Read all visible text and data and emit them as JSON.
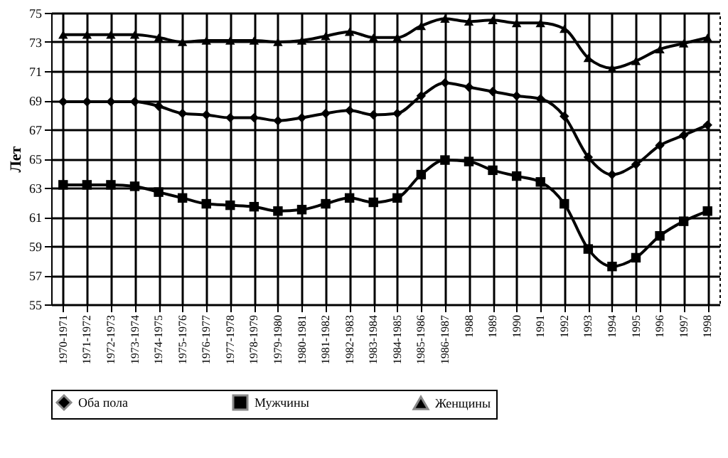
{
  "chart_data": {
    "type": "line",
    "ylabel": "Лет",
    "categories": [
      "1970-1971",
      "1971-1972",
      "1972-1973",
      "1973-1974",
      "1974-1975",
      "1975-1976",
      "1976-1977",
      "1977-1978",
      "1978-1979",
      "1979-1980",
      "1980-1981",
      "1981-1982",
      "1982-1983",
      "1983-1984",
      "1984-1985",
      "1985-1986",
      "1986-1987",
      "1988",
      "1989",
      "1990",
      "1991",
      "1992",
      "1993",
      "1994",
      "1995",
      "1996",
      "1997",
      "1998"
    ],
    "series": [
      {
        "name": "Оба пола",
        "color": "#000000",
        "marker": "diamond",
        "values": [
          68.9,
          68.9,
          68.9,
          68.9,
          68.6,
          68.1,
          68.0,
          67.8,
          67.8,
          67.6,
          67.8,
          68.1,
          68.3,
          68.0,
          68.1,
          69.3,
          70.2,
          69.9,
          69.6,
          69.3,
          69.1,
          67.9,
          65.1,
          63.9,
          64.6,
          65.9,
          66.6,
          67.3
        ]
      },
      {
        "name": "Мужчины",
        "color": "#000000",
        "marker": "square",
        "values": [
          63.2,
          63.2,
          63.2,
          63.1,
          62.7,
          62.3,
          61.9,
          61.8,
          61.7,
          61.4,
          61.5,
          61.9,
          62.3,
          62.0,
          62.3,
          63.9,
          64.9,
          64.8,
          64.2,
          63.8,
          63.4,
          61.9,
          58.8,
          57.6,
          58.2,
          59.7,
          60.7,
          61.4
        ]
      },
      {
        "name": "Женщины",
        "color": "#000000",
        "marker": "triangle",
        "values": [
          73.5,
          73.5,
          73.5,
          73.5,
          73.3,
          73.0,
          73.1,
          73.1,
          73.1,
          73.0,
          73.1,
          73.4,
          73.7,
          73.3,
          73.3,
          74.1,
          74.6,
          74.4,
          74.5,
          74.3,
          74.3,
          73.9,
          71.9,
          71.2,
          71.7,
          72.5,
          72.9,
          73.3
        ]
      }
    ],
    "ylim": [
      55,
      75
    ],
    "yticks": [
      55,
      57,
      59,
      61,
      63,
      65,
      67,
      69,
      71,
      73,
      75
    ],
    "grid": true,
    "legend": "bottom",
    "line_style": "solid"
  }
}
